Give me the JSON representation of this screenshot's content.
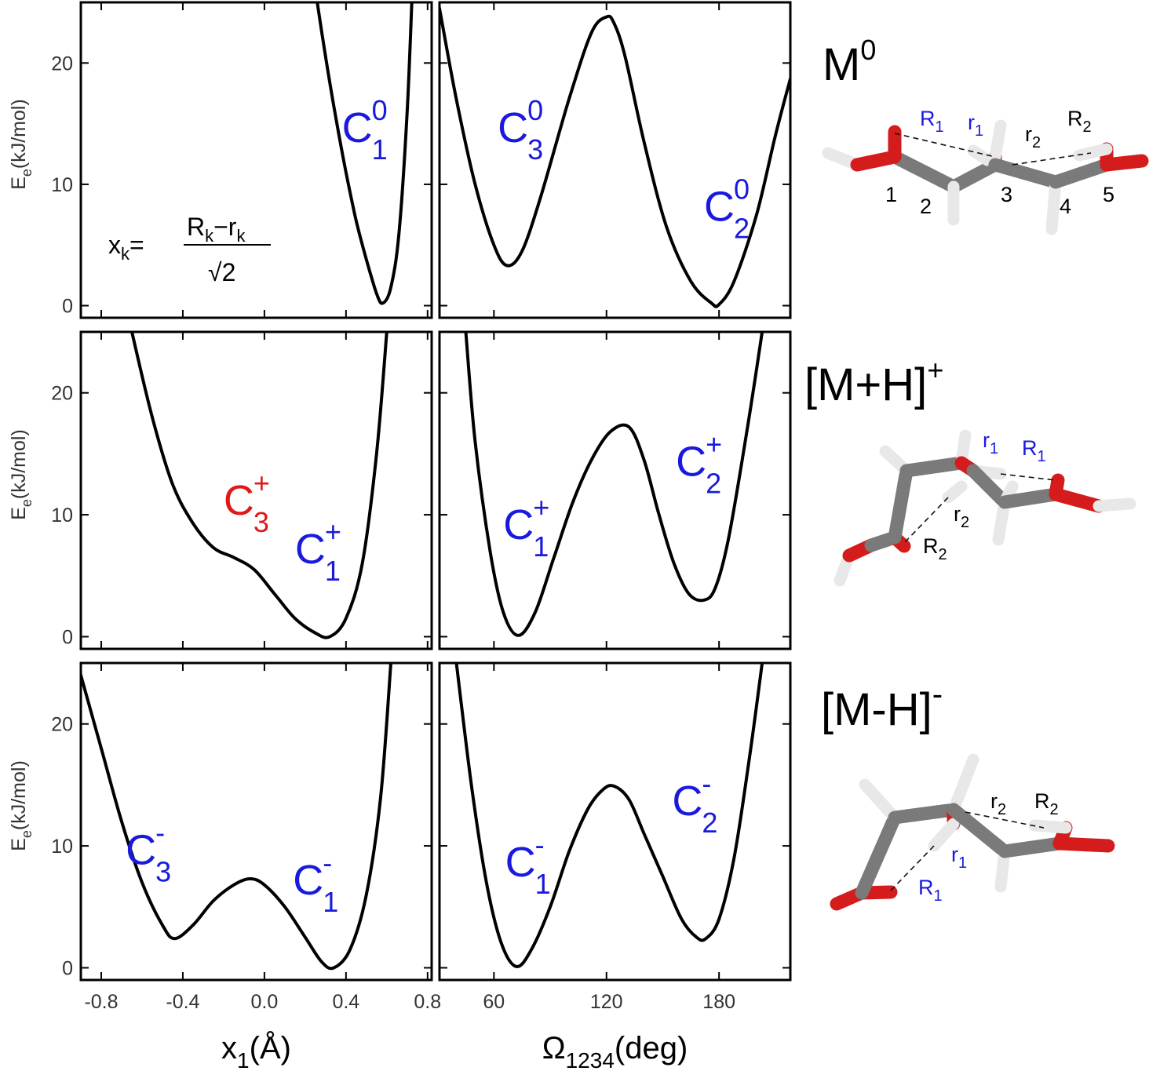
{
  "chart_data": [
    {
      "type": "line",
      "panel": "M0-x1",
      "ylabel": "E",
      "ylabel_sub": "e",
      "ylabel_unit": "(kJ/mol)",
      "xlim": [
        -0.9,
        0.82
      ],
      "ylim": [
        -1,
        25
      ],
      "yticks": [
        "0",
        "10",
        "20"
      ],
      "ytick_values": [
        0,
        10,
        20
      ],
      "x": [
        0.25,
        0.3,
        0.35,
        0.4,
        0.45,
        0.5,
        0.55,
        0.58,
        0.62,
        0.66,
        0.7,
        0.725
      ],
      "y": [
        26,
        20.5,
        15.5,
        11,
        7,
        3.8,
        1.0,
        0.2,
        1.5,
        6,
        16,
        26
      ],
      "labels": [
        {
          "base": "C",
          "sup": "0",
          "sub": "1",
          "color": "#1a1adf",
          "x": 0.38,
          "y": 13.5
        }
      ],
      "formula": {
        "lhs": "x",
        "lhs_sub": "k",
        "eq": "=",
        "num_a": "R",
        "num_a_sub": "k",
        "minus": "−",
        "num_b": "r",
        "num_b_sub": "k",
        "den": "√2"
      }
    },
    {
      "type": "line",
      "panel": "M0-omega",
      "xlim": [
        31,
        218
      ],
      "ylim": [
        -1,
        25
      ],
      "x": [
        31,
        40,
        50,
        60,
        67,
        75,
        85,
        100,
        112,
        120,
        124,
        130,
        140,
        152,
        165,
        176,
        180,
        188,
        200,
        210,
        218
      ],
      "y": [
        24.5,
        17,
        10,
        5,
        3.3,
        4.5,
        9,
        17,
        22.5,
        23.8,
        23.3,
        20.5,
        13.5,
        6.5,
        2,
        0.2,
        0.1,
        2,
        7.5,
        14,
        18.7
      ],
      "labels": [
        {
          "base": "C",
          "sup": "0",
          "sub": "3",
          "color": "#1a1adf",
          "x": 62,
          "y": 13.5
        },
        {
          "base": "C",
          "sup": "0",
          "sub": "2",
          "color": "#1a1adf",
          "x": 172,
          "y": 7
        }
      ]
    },
    {
      "type": "line",
      "panel": "MH+-x1",
      "ylabel": "E",
      "ylabel_sub": "e",
      "ylabel_unit": "(kJ/mol)",
      "xlim": [
        -0.9,
        0.82
      ],
      "ylim": [
        -1,
        25
      ],
      "yticks": [
        "0",
        "10",
        "20"
      ],
      "ytick_values": [
        0,
        10,
        20
      ],
      "x": [
        -0.65,
        -0.55,
        -0.45,
        -0.35,
        -0.25,
        -0.15,
        -0.05,
        0.05,
        0.15,
        0.25,
        0.32,
        0.4,
        0.48,
        0.55,
        0.6
      ],
      "y": [
        25,
        18,
        12.5,
        9.3,
        7.3,
        6.5,
        5.5,
        3.5,
        1.5,
        0.3,
        0.0,
        1.5,
        6,
        15,
        25
      ],
      "labels": [
        {
          "base": "C",
          "sup": "+",
          "sub": "3",
          "color": "#e01818",
          "x": -0.2,
          "y": 10
        },
        {
          "base": "C",
          "sup": "+",
          "sub": "1",
          "color": "#1a1adf",
          "x": 0.15,
          "y": 6
        }
      ]
    },
    {
      "type": "line",
      "panel": "MH+-omega",
      "xlim": [
        31,
        218
      ],
      "ylim": [
        -1,
        25
      ],
      "x": [
        45,
        50,
        58,
        65,
        73,
        82,
        92,
        102,
        112,
        122,
        132,
        140,
        148,
        156,
        164,
        172,
        178,
        185,
        195,
        203
      ],
      "y": [
        25,
        16,
        7,
        2,
        0.1,
        2,
        6.5,
        11,
        14.5,
        16.8,
        17.2,
        14.5,
        10,
        6,
        3.5,
        3,
        4,
        8,
        17,
        25
      ],
      "labels": [
        {
          "base": "C",
          "sup": "+",
          "sub": "1",
          "color": "#1a1adf",
          "x": 65,
          "y": 8
        },
        {
          "base": "C",
          "sup": "+",
          "sub": "2",
          "color": "#1a1adf",
          "x": 157,
          "y": 13.2
        }
      ]
    },
    {
      "type": "line",
      "panel": "MH--x1",
      "ylabel": "E",
      "ylabel_sub": "e",
      "ylabel_unit": "(kJ/mol)",
      "xlim": [
        -0.9,
        0.82
      ],
      "ylim": [
        -1,
        25
      ],
      "xticks": [
        "-0.8",
        "-0.4",
        "0.0",
        "0.4",
        "0.8"
      ],
      "xtick_values": [
        -0.8,
        -0.4,
        0.0,
        0.4,
        0.8
      ],
      "yticks": [
        "0",
        "10",
        "20"
      ],
      "ytick_values": [
        0,
        10,
        20
      ],
      "xlabel": "x",
      "xlabel_sub": "1",
      "xlabel_unit": "(Å)",
      "x": [
        -0.9,
        -0.8,
        -0.7,
        -0.6,
        -0.5,
        -0.44,
        -0.35,
        -0.25,
        -0.15,
        -0.07,
        0.0,
        0.1,
        0.2,
        0.28,
        0.34,
        0.42,
        0.5,
        0.57,
        0.62
      ],
      "y": [
        24,
        18,
        12,
        7,
        3.5,
        2.4,
        3.5,
        5.5,
        6.8,
        7.3,
        6.8,
        5,
        2.5,
        0.5,
        0.0,
        1.5,
        6,
        14,
        25
      ],
      "labels": [
        {
          "base": "C",
          "sup": "-",
          "sub": "3",
          "color": "#1a1adf",
          "x": -0.68,
          "y": 8.5
        },
        {
          "base": "C",
          "sup": "-",
          "sub": "1",
          "color": "#1a1adf",
          "x": 0.14,
          "y": 6
        }
      ]
    },
    {
      "type": "line",
      "panel": "MH--omega",
      "xlim": [
        31,
        218
      ],
      "ylim": [
        -1,
        25
      ],
      "xticks": [
        "60",
        "120",
        "180"
      ],
      "xtick_values": [
        60,
        120,
        180
      ],
      "xlabel": "Ω",
      "xlabel_sub": "1234",
      "xlabel_unit": "(deg)",
      "x": [
        40,
        48,
        56,
        64,
        72,
        80,
        90,
        100,
        110,
        118,
        124,
        132,
        140,
        150,
        160,
        168,
        173,
        180,
        188,
        196,
        203
      ],
      "y": [
        25,
        15,
        7,
        2,
        0.1,
        1.5,
        5,
        9.5,
        13,
        14.6,
        14.9,
        13.8,
        11,
        7.5,
        4,
        2.5,
        2.4,
        4,
        9,
        17,
        25
      ],
      "labels": [
        {
          "base": "C",
          "sup": "-",
          "sub": "1",
          "color": "#1a1adf",
          "x": 66,
          "y": 7.5
        },
        {
          "base": "C",
          "sup": "-",
          "sub": "2",
          "color": "#1a1adf",
          "x": 155,
          "y": 12.5
        }
      ]
    }
  ],
  "species": [
    {
      "base": "M",
      "sup": "0",
      "close": "",
      "sup_is_charge": false
    },
    {
      "base": "[M+H]",
      "sup": "+",
      "close": "",
      "sup_is_charge": true
    },
    {
      "base": "[M-H]",
      "sup": "-",
      "close": "",
      "sup_is_charge": true
    }
  ],
  "molecule_labels": {
    "m0": {
      "R1": {
        "t": "R",
        "s": "1",
        "color": "#1a1adf"
      },
      "r1": {
        "t": "r",
        "s": "1",
        "color": "#1a1adf"
      },
      "r2": {
        "t": "r",
        "s": "2",
        "color": "#000000"
      },
      "R2": {
        "t": "R",
        "s": "2",
        "color": "#000000"
      },
      "atoms": [
        "1",
        "2",
        "3",
        "4",
        "5"
      ]
    },
    "mp": {
      "r1": {
        "t": "r",
        "s": "1",
        "color": "#1a1adf"
      },
      "R1": {
        "t": "R",
        "s": "1",
        "color": "#1a1adf"
      },
      "r2": {
        "t": "r",
        "s": "2",
        "color": "#000000"
      },
      "R2": {
        "t": "R",
        "s": "2",
        "color": "#000000"
      }
    },
    "mm": {
      "r2": {
        "t": "r",
        "s": "2",
        "color": "#000000"
      },
      "R2": {
        "t": "R",
        "s": "2",
        "color": "#000000"
      },
      "r1": {
        "t": "r",
        "s": "1",
        "color": "#1a1adf"
      },
      "R1": {
        "t": "R",
        "s": "1",
        "color": "#1a1adf"
      }
    }
  },
  "colors": {
    "blue": "#1a1adf",
    "red": "#e01818",
    "carbon": "#7a7a7a",
    "oxygen": "#d41c1c",
    "hydrogen": "#e8e8e8"
  }
}
